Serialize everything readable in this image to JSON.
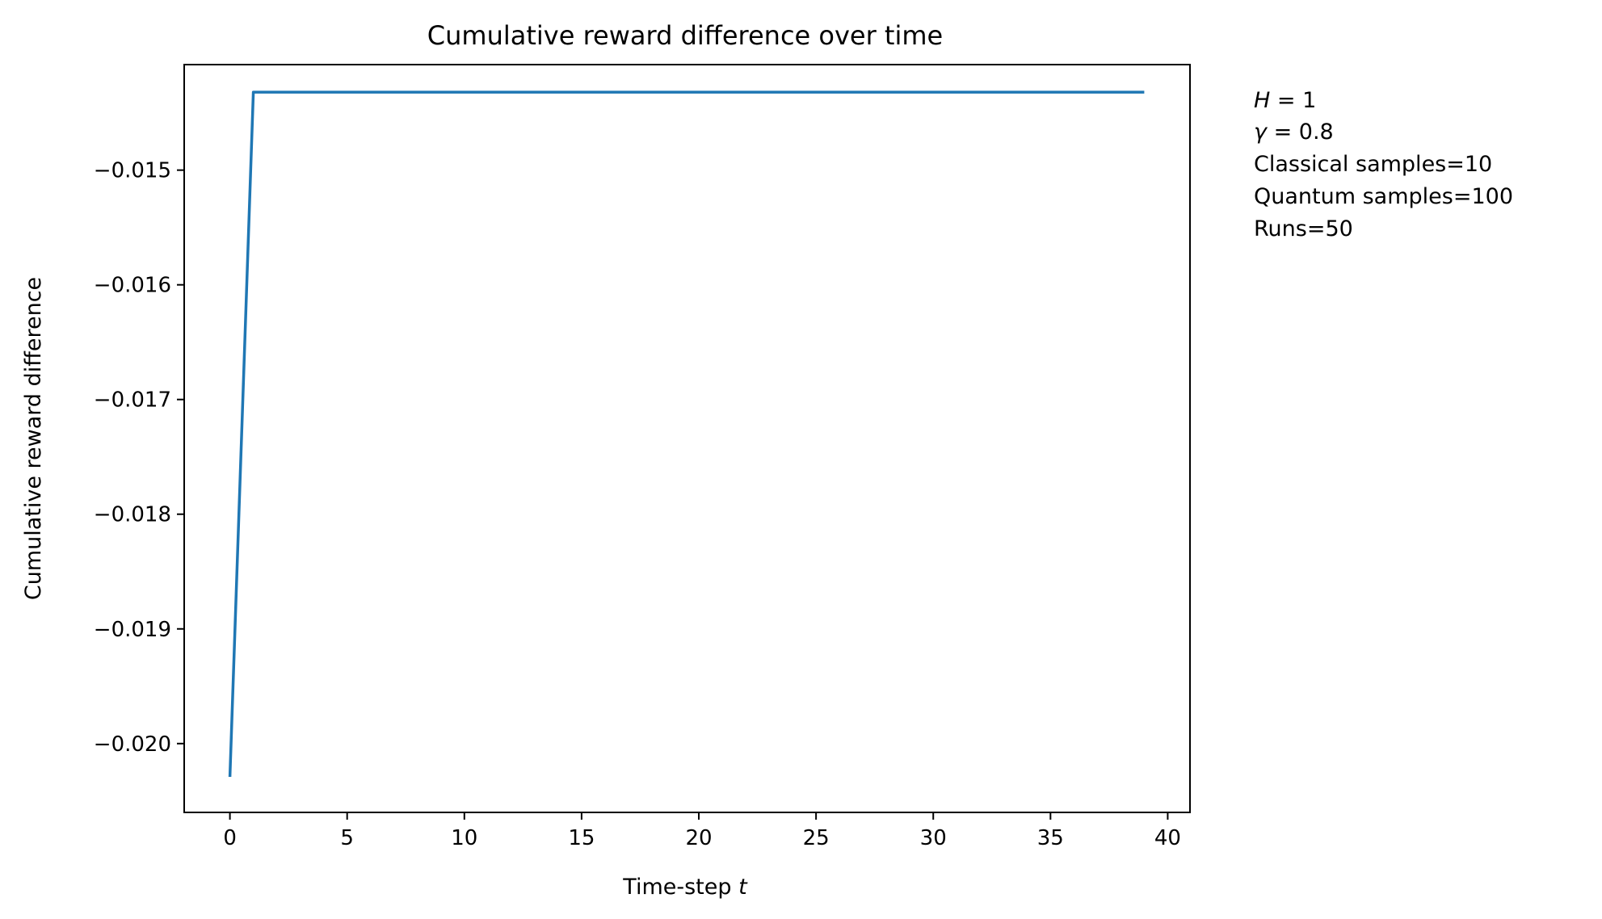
{
  "chart_data": {
    "type": "line",
    "title": "Cumulative reward difference over time",
    "xlabel_text": "Time-step",
    "xlabel_var": "t",
    "ylabel": "Cumulative reward difference",
    "xlim": [
      -1.95,
      40.95
    ],
    "ylim": [
      -0.0206,
      -0.01408
    ],
    "xticks": [
      0,
      5,
      10,
      15,
      20,
      25,
      30,
      35,
      40
    ],
    "xtick_labels": [
      "0",
      "5",
      "10",
      "15",
      "20",
      "25",
      "30",
      "35",
      "40"
    ],
    "yticks": [
      -0.015,
      -0.016,
      -0.017,
      -0.018,
      -0.019,
      -0.02
    ],
    "ytick_labels": [
      "−0.015",
      "−0.016",
      "−0.017",
      "−0.018",
      "−0.019",
      "−0.020"
    ],
    "grid": false,
    "series": [
      {
        "color": "#1f77b4",
        "x": [
          0,
          1,
          2,
          3,
          4,
          5,
          6,
          7,
          8,
          9,
          10,
          11,
          12,
          13,
          14,
          15,
          16,
          17,
          18,
          19,
          20,
          21,
          22,
          23,
          24,
          25,
          26,
          27,
          28,
          29,
          30,
          31,
          32,
          33,
          34,
          35,
          36,
          37,
          38,
          39
        ],
        "y": [
          -0.02029,
          -0.01432,
          -0.01432,
          -0.01432,
          -0.01432,
          -0.01432,
          -0.01432,
          -0.01432,
          -0.01432,
          -0.01432,
          -0.01432,
          -0.01432,
          -0.01432,
          -0.01432,
          -0.01432,
          -0.01432,
          -0.01432,
          -0.01432,
          -0.01432,
          -0.01432,
          -0.01432,
          -0.01432,
          -0.01432,
          -0.01432,
          -0.01432,
          -0.01432,
          -0.01432,
          -0.01432,
          -0.01432,
          -0.01432,
          -0.01432,
          -0.01432,
          -0.01432,
          -0.01432,
          -0.01432,
          -0.01432,
          -0.01432,
          -0.01432,
          -0.01432,
          -0.01432
        ]
      }
    ],
    "annotation": {
      "h_var": "H",
      "h_value": "= 1",
      "gamma_var": "γ",
      "gamma_value": "= 0.8",
      "classical": "Classical samples=10",
      "quantum": "Quantum samples=100",
      "runs": "Runs=50"
    }
  }
}
